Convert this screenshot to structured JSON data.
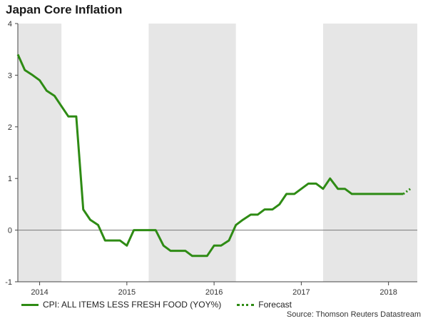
{
  "chart_data": {
    "type": "line",
    "title": "Japan Core Inflation",
    "xlabel": "",
    "ylabel": "",
    "ylim": [
      -1,
      4
    ],
    "xlim": [
      2013.75,
      2018.33
    ],
    "y_ticks": [
      -1,
      0,
      1,
      2,
      3,
      4
    ],
    "x_tick_labels": [
      {
        "label": "2014",
        "x": 2014.0
      },
      {
        "label": "2015",
        "x": 2015.0
      },
      {
        "label": "2016",
        "x": 2016.0
      },
      {
        "label": "2017",
        "x": 2017.0
      },
      {
        "label": "2018",
        "x": 2018.0
      }
    ],
    "shaded_periods": [
      [
        2013.75,
        2014.25
      ],
      [
        2015.25,
        2016.25
      ],
      [
        2017.25,
        2018.33
      ]
    ],
    "series": [
      {
        "name": "CPI: ALL ITEMS LESS FRESH FOOD (YOY%)",
        "style": "solid",
        "color": "#2e8b14",
        "x": [
          2013.75,
          2013.83,
          2013.92,
          2014.0,
          2014.08,
          2014.17,
          2014.25,
          2014.33,
          2014.42,
          2014.5,
          2014.58,
          2014.67,
          2014.75,
          2014.83,
          2014.92,
          2015.0,
          2015.08,
          2015.17,
          2015.25,
          2015.33,
          2015.42,
          2015.5,
          2015.58,
          2015.67,
          2015.75,
          2015.83,
          2015.92,
          2016.0,
          2016.08,
          2016.17,
          2016.25,
          2016.33,
          2016.42,
          2016.5,
          2016.58,
          2016.67,
          2016.75,
          2016.83,
          2016.92,
          2017.0,
          2017.08,
          2017.17,
          2017.25,
          2017.33,
          2017.42,
          2017.5,
          2017.58,
          2017.67,
          2017.75,
          2017.83,
          2017.92,
          2018.0,
          2018.08,
          2018.17
        ],
        "values": [
          3.4,
          3.1,
          3.0,
          2.9,
          2.7,
          2.6,
          2.4,
          2.2,
          2.2,
          0.4,
          0.2,
          0.1,
          -0.2,
          -0.2,
          -0.2,
          -0.3,
          0.0,
          0.0,
          0.0,
          0.0,
          -0.3,
          -0.4,
          -0.4,
          -0.4,
          -0.5,
          -0.5,
          -0.5,
          -0.3,
          -0.3,
          -0.2,
          0.1,
          0.2,
          0.3,
          0.3,
          0.4,
          0.4,
          0.5,
          0.7,
          0.7,
          0.8,
          0.9,
          0.9,
          0.8,
          1.0,
          0.8,
          0.8,
          0.7,
          0.7,
          0.7,
          0.7,
          0.7,
          0.7,
          0.7,
          0.7
        ]
      },
      {
        "name": "Forecast",
        "style": "dotted",
        "color": "#2e8b14",
        "x": [
          2018.17,
          2018.25
        ],
        "values": [
          0.7,
          0.8
        ]
      }
    ],
    "source": "Source: Thomson Reuters Datastream"
  }
}
